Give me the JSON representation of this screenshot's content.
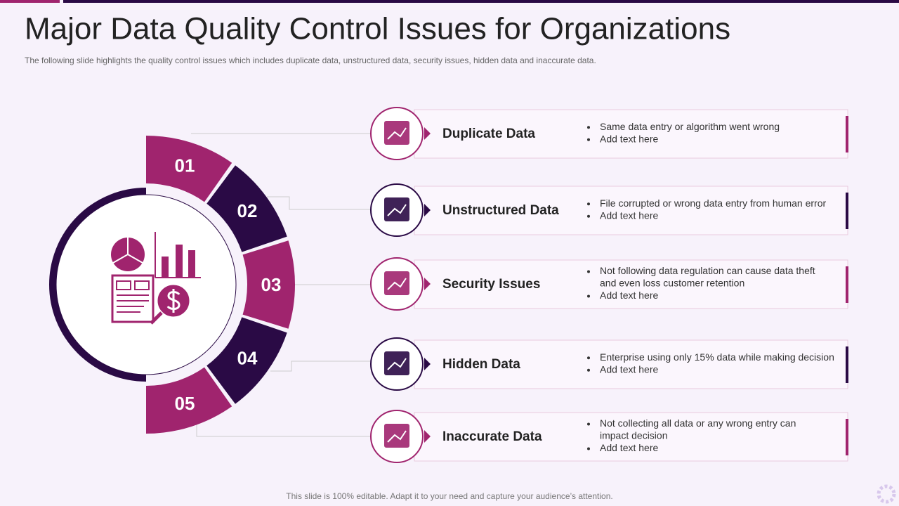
{
  "header": {
    "title": "Major Data Quality Control Issues for Organizations",
    "subtitle": "The following slide highlights the quality control issues which includes duplicate data, unstructured data, security issues, hidden data and inaccurate data."
  },
  "segments": [
    "01",
    "02",
    "03",
    "04",
    "05"
  ],
  "items": [
    {
      "title": "Duplicate Data",
      "bullets": [
        "Same data entry or algorithm went wrong",
        "Add text here"
      ]
    },
    {
      "title": "Unstructured Data",
      "bullets": [
        "File corrupted or wrong data entry from human error",
        "Add text here"
      ]
    },
    {
      "title": "Security Issues",
      "bullets": [
        "Not following data regulation can cause data theft",
        "and even loss customer retention",
        "Add text here"
      ]
    },
    {
      "title": "Hidden Data",
      "bullets": [
        "Enterprise using only 15% data while making decision",
        "Add text here"
      ]
    },
    {
      "title": "Inaccurate Data",
      "bullets": [
        "Not collecting all data or any wrong entry can",
        "impact decision",
        "Add text here"
      ]
    }
  ],
  "footer": "This slide is 100% editable. Adapt it to your need and capture your audience’s attention."
}
